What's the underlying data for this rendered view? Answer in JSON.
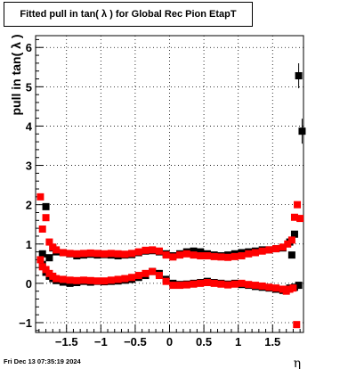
{
  "chart_data": {
    "type": "scatter",
    "title": "Fitted pull in tan( λ ) for Global Rec Pion EtapT",
    "xlabel": "η",
    "ylabel": "pull in tan( λ )",
    "xlim": [
      -1.95,
      1.95
    ],
    "ylim": [
      -1.25,
      6.3
    ],
    "xticks": [
      -1.5,
      -1,
      -0.5,
      0,
      0.5,
      1,
      1.5
    ],
    "xtick_labels": [
      "−1.5",
      "−1",
      "−0.5",
      "0",
      "0.5",
      "1",
      "1.5"
    ],
    "yticks": [
      -1,
      0,
      1,
      2,
      3,
      4,
      5,
      6
    ],
    "ytick_labels": [
      "−1",
      "0",
      "1",
      "2",
      "3",
      "4",
      "5",
      "6"
    ],
    "grid": true,
    "series": [
      {
        "color": "#000000",
        "marker": "square",
        "points": [
          [
            -1.85,
            0.75
          ],
          [
            -1.8,
            1.95
          ],
          [
            -1.75,
            0.65
          ],
          [
            -1.7,
            0.9
          ],
          [
            -1.65,
            0.8
          ],
          [
            -1.55,
            0.78
          ],
          [
            -1.45,
            0.75
          ],
          [
            -1.35,
            0.7
          ],
          [
            -1.25,
            0.72
          ],
          [
            -1.15,
            0.74
          ],
          [
            -1.05,
            0.72
          ],
          [
            -0.95,
            0.73
          ],
          [
            -0.85,
            0.72
          ],
          [
            -0.75,
            0.7
          ],
          [
            -0.65,
            0.72
          ],
          [
            -0.55,
            0.73
          ],
          [
            -0.45,
            0.78
          ],
          [
            -0.35,
            0.82
          ],
          [
            -0.25,
            0.83
          ],
          [
            -0.15,
            0.8
          ],
          [
            -0.05,
            0.75
          ],
          [
            0.05,
            0.7
          ],
          [
            0.15,
            0.75
          ],
          [
            0.25,
            0.8
          ],
          [
            0.35,
            0.82
          ],
          [
            0.45,
            0.8
          ],
          [
            0.55,
            0.75
          ],
          [
            0.65,
            0.72
          ],
          [
            0.75,
            0.7
          ],
          [
            0.85,
            0.72
          ],
          [
            0.95,
            0.75
          ],
          [
            1.05,
            0.78
          ],
          [
            1.15,
            0.8
          ],
          [
            1.25,
            0.82
          ],
          [
            1.35,
            0.85
          ],
          [
            1.45,
            0.85
          ],
          [
            1.55,
            0.88
          ],
          [
            1.65,
            0.9
          ],
          [
            1.75,
            1.05
          ],
          [
            1.78,
            0.72
          ],
          [
            1.82,
            1.25
          ],
          [
            1.88,
            5.28
          ],
          [
            1.93,
            3.87
          ],
          [
            -1.85,
            0.48
          ],
          [
            -1.8,
            0.28
          ],
          [
            -1.75,
            0.18
          ],
          [
            -1.7,
            0.12
          ],
          [
            -1.65,
            0.07
          ],
          [
            -1.55,
            0.03
          ],
          [
            -1.45,
            0.0
          ],
          [
            -1.35,
            0.02
          ],
          [
            -1.25,
            0.05
          ],
          [
            -1.15,
            0.03
          ],
          [
            -1.05,
            0.05
          ],
          [
            -0.95,
            0.04
          ],
          [
            -0.85,
            0.05
          ],
          [
            -0.75,
            0.06
          ],
          [
            -0.65,
            0.08
          ],
          [
            -0.55,
            0.1
          ],
          [
            -0.45,
            0.15
          ],
          [
            -0.35,
            0.2
          ],
          [
            -0.25,
            0.3
          ],
          [
            -0.15,
            0.25
          ],
          [
            -0.05,
            0.1
          ],
          [
            0.05,
            0.0
          ],
          [
            0.15,
            -0.03
          ],
          [
            0.25,
            -0.02
          ],
          [
            0.35,
            0.0
          ],
          [
            0.45,
            0.02
          ],
          [
            0.55,
            0.05
          ],
          [
            0.65,
            0.02
          ],
          [
            0.75,
            0.0
          ],
          [
            0.85,
            -0.02
          ],
          [
            0.95,
            0.0
          ],
          [
            1.05,
            -0.03
          ],
          [
            1.15,
            -0.05
          ],
          [
            1.25,
            -0.08
          ],
          [
            1.35,
            -0.1
          ],
          [
            1.45,
            -0.12
          ],
          [
            1.55,
            -0.15
          ],
          [
            1.65,
            -0.18
          ],
          [
            1.75,
            -0.12
          ],
          [
            1.82,
            -0.1
          ],
          [
            1.88,
            -0.05
          ]
        ]
      },
      {
        "color": "#ff0000",
        "marker": "square",
        "points": [
          [
            -1.88,
            2.2
          ],
          [
            -1.85,
            1.38
          ],
          [
            -1.8,
            1.67
          ],
          [
            -1.75,
            1.05
          ],
          [
            -1.7,
            0.92
          ],
          [
            -1.65,
            0.85
          ],
          [
            -1.55,
            0.78
          ],
          [
            -1.45,
            0.76
          ],
          [
            -1.35,
            0.75
          ],
          [
            -1.25,
            0.76
          ],
          [
            -1.15,
            0.77
          ],
          [
            -1.05,
            0.76
          ],
          [
            -0.95,
            0.75
          ],
          [
            -0.85,
            0.76
          ],
          [
            -0.75,
            0.75
          ],
          [
            -0.65,
            0.74
          ],
          [
            -0.55,
            0.76
          ],
          [
            -0.45,
            0.8
          ],
          [
            -0.35,
            0.84
          ],
          [
            -0.25,
            0.85
          ],
          [
            -0.15,
            0.82
          ],
          [
            -0.05,
            0.72
          ],
          [
            0.05,
            0.67
          ],
          [
            0.15,
            0.72
          ],
          [
            0.25,
            0.75
          ],
          [
            0.35,
            0.72
          ],
          [
            0.45,
            0.7
          ],
          [
            0.55,
            0.7
          ],
          [
            0.65,
            0.68
          ],
          [
            0.75,
            0.67
          ],
          [
            0.85,
            0.66
          ],
          [
            0.95,
            0.68
          ],
          [
            1.05,
            0.7
          ],
          [
            1.15,
            0.75
          ],
          [
            1.25,
            0.78
          ],
          [
            1.35,
            0.82
          ],
          [
            1.45,
            0.85
          ],
          [
            1.55,
            0.88
          ],
          [
            1.65,
            0.92
          ],
          [
            1.72,
            1.0
          ],
          [
            1.78,
            1.1
          ],
          [
            1.82,
            1.68
          ],
          [
            1.86,
            2.0
          ],
          [
            1.9,
            1.65
          ],
          [
            -1.88,
            0.6
          ],
          [
            -1.85,
            0.42
          ],
          [
            -1.8,
            0.35
          ],
          [
            -1.75,
            0.25
          ],
          [
            -1.7,
            0.18
          ],
          [
            -1.65,
            0.12
          ],
          [
            -1.55,
            0.1
          ],
          [
            -1.45,
            0.08
          ],
          [
            -1.35,
            0.07
          ],
          [
            -1.25,
            0.08
          ],
          [
            -1.15,
            0.07
          ],
          [
            -1.05,
            0.06
          ],
          [
            -0.95,
            0.06
          ],
          [
            -0.85,
            0.08
          ],
          [
            -0.75,
            0.1
          ],
          [
            -0.65,
            0.12
          ],
          [
            -0.55,
            0.15
          ],
          [
            -0.45,
            0.2
          ],
          [
            -0.35,
            0.25
          ],
          [
            -0.25,
            0.3
          ],
          [
            -0.15,
            0.2
          ],
          [
            -0.05,
            0.05
          ],
          [
            0.05,
            -0.05
          ],
          [
            0.15,
            -0.05
          ],
          [
            0.25,
            -0.04
          ],
          [
            0.35,
            -0.02
          ],
          [
            0.45,
            0.0
          ],
          [
            0.55,
            0.02
          ],
          [
            0.65,
            0.0
          ],
          [
            0.75,
            -0.02
          ],
          [
            0.85,
            -0.04
          ],
          [
            0.95,
            -0.02
          ],
          [
            1.05,
            0.0
          ],
          [
            1.15,
            -0.03
          ],
          [
            1.25,
            -0.05
          ],
          [
            1.35,
            -0.07
          ],
          [
            1.45,
            -0.1
          ],
          [
            1.55,
            -0.12
          ],
          [
            1.65,
            -0.15
          ],
          [
            1.7,
            -0.2
          ],
          [
            1.75,
            -0.15
          ],
          [
            1.8,
            -0.12
          ],
          [
            1.85,
            -1.05
          ]
        ]
      }
    ]
  },
  "footer": {
    "date": "Fri Dec 13 07:35:19 2024"
  }
}
